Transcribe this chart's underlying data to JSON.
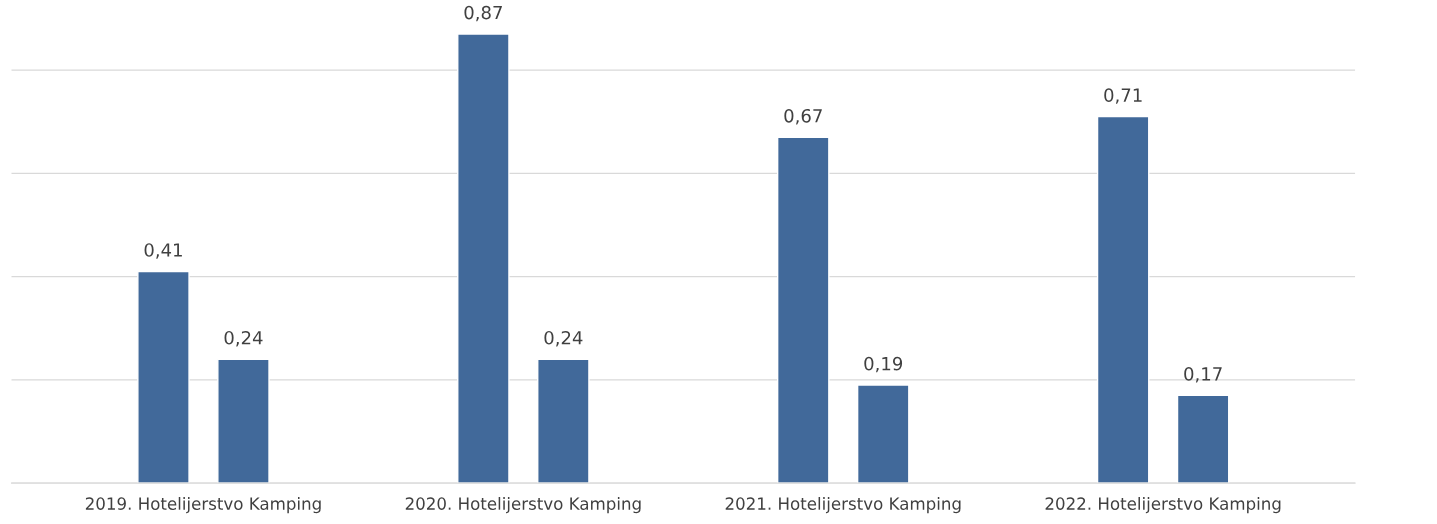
{
  "chart_data": {
    "type": "bar",
    "categories": [
      "2019. Hotelijerstvo Kamping",
      "2020. Hotelijerstvo Kamping",
      "2021. Hotelijerstvo Kamping",
      "2022. Hotelijerstvo Kamping"
    ],
    "series": [
      {
        "color": "#41699a",
        "values": [
          0.41,
          0.87,
          0.67,
          0.71
        ],
        "value_labels": [
          "0,41",
          "0,87",
          "0,67",
          "0,71"
        ]
      },
      {
        "color": "#41699a",
        "values": [
          0.24,
          0.24,
          0.19,
          0.17
        ],
        "value_labels": [
          "0,24",
          "0,24",
          "0,19",
          "0,17"
        ]
      }
    ],
    "grid": "y",
    "tick_labels": "x"
  }
}
